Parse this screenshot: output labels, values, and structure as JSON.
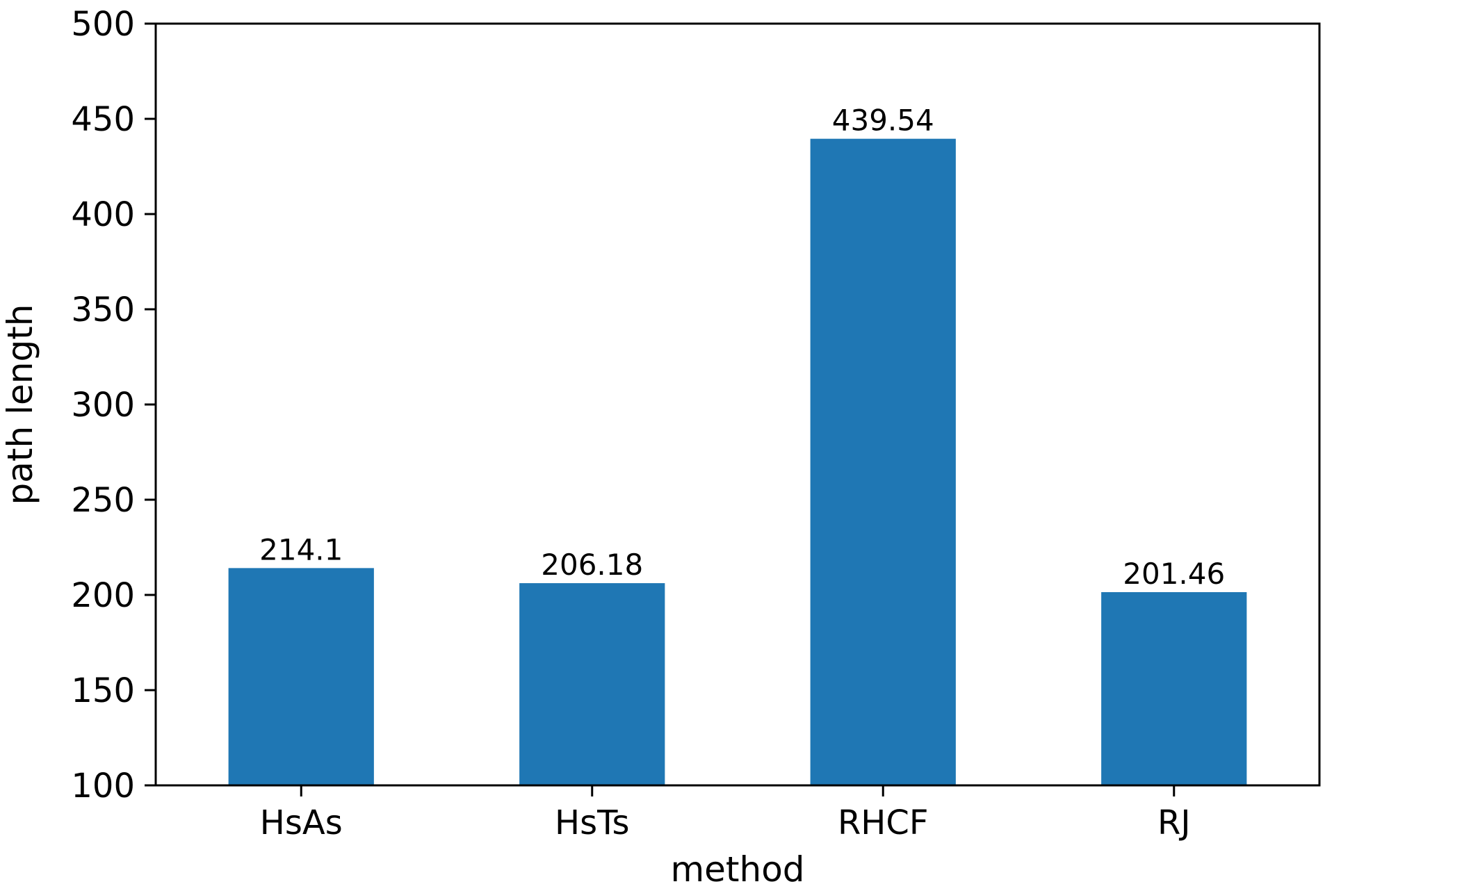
{
  "chart_data": {
    "type": "bar",
    "categories": [
      "HsAs",
      "HsTs",
      "RHCF",
      "RJ"
    ],
    "values": [
      214.1,
      206.18,
      439.54,
      201.46
    ],
    "value_labels": [
      "214.1",
      "206.18",
      "439.54",
      "201.46"
    ],
    "xlabel": "method",
    "ylabel": "path length",
    "ylim": [
      100,
      500
    ],
    "yticks": [
      100,
      150,
      200,
      250,
      300,
      350,
      400,
      450,
      500
    ],
    "bar_color": "#1f77b4",
    "grid": false,
    "legend": "none"
  }
}
